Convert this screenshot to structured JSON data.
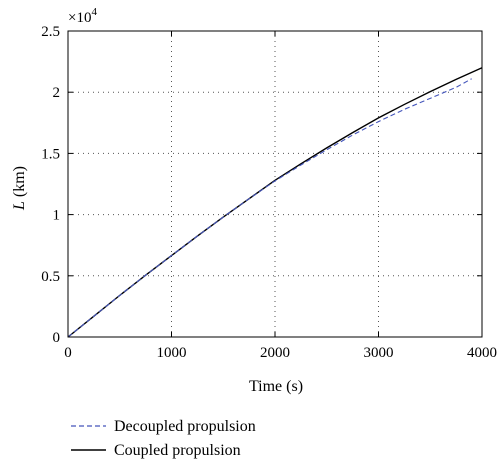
{
  "chart_data": {
    "type": "line",
    "xlabel": "Time (s)",
    "ylabel_var": "L",
    "ylabel_unit": " (km)",
    "scale_base": "×10",
    "scale_exponent": "4",
    "xlim": [
      0,
      4000
    ],
    "ylim": [
      0,
      25000
    ],
    "xticks": [
      0,
      1000,
      2000,
      3000,
      4000
    ],
    "xtick_labels": [
      "0",
      "1000",
      "2000",
      "3000",
      "4000"
    ],
    "yticks": [
      0,
      5000,
      10000,
      15000,
      20000,
      25000
    ],
    "ytick_labels": [
      "0",
      "0.5",
      "1",
      "1.5",
      "2",
      "2.5"
    ],
    "grid": true,
    "legend_position": "bottom",
    "series": [
      {
        "name": "Decoupled propulsion",
        "color": "#4455bb",
        "style": "dashed",
        "x": [
          0,
          250,
          500,
          750,
          1000,
          1250,
          1500,
          1750,
          2000,
          2250,
          2500,
          2750,
          3000,
          3250,
          3500,
          3750,
          3900
        ],
        "y": [
          0,
          1700,
          3400,
          5050,
          6650,
          8250,
          9800,
          11300,
          12750,
          14050,
          15300,
          16500,
          17600,
          18600,
          19500,
          20400,
          21100
        ]
      },
      {
        "name": "Coupled propulsion",
        "color": "#000000",
        "style": "solid",
        "x": [
          0,
          250,
          500,
          750,
          1000,
          1250,
          1500,
          1750,
          2000,
          2250,
          2500,
          2750,
          3000,
          3250,
          3500,
          3750,
          4000
        ],
        "y": [
          0,
          1700,
          3400,
          5050,
          6650,
          8250,
          9800,
          11300,
          12800,
          14150,
          15450,
          16700,
          17900,
          19000,
          20050,
          21050,
          22000
        ]
      }
    ]
  }
}
